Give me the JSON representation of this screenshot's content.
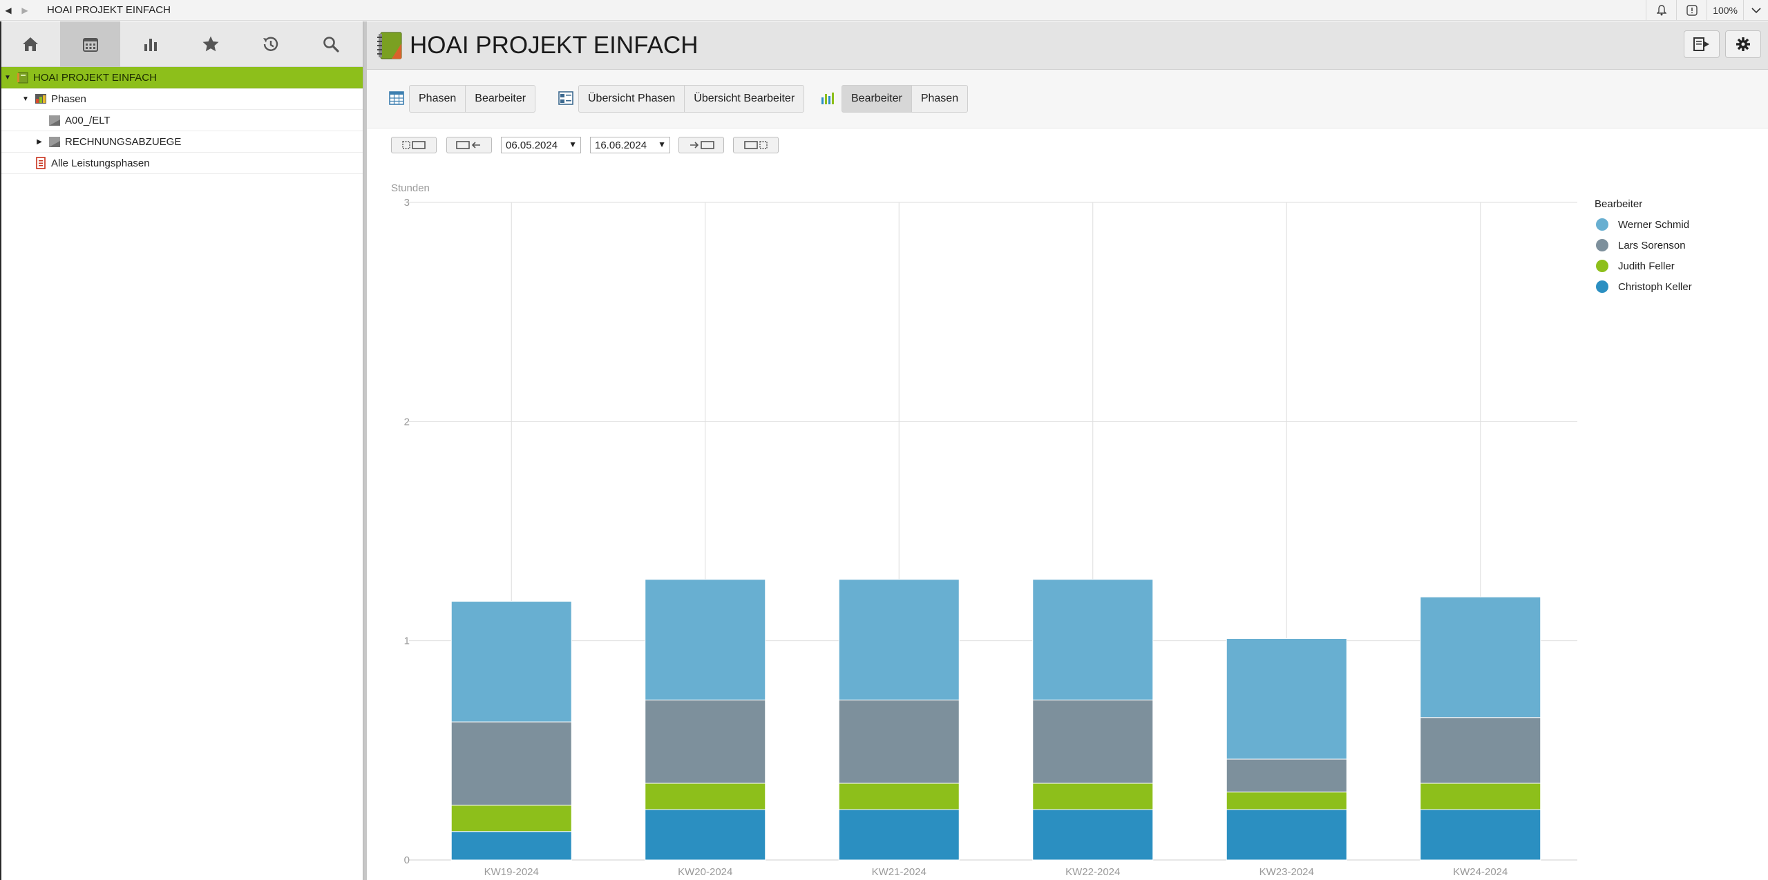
{
  "app": {
    "window_title": "HOAI PROJEKT EINFACH",
    "zoom": "100%"
  },
  "left": {
    "tree": [
      {
        "label": "HOAI PROJEKT EINFACH"
      },
      {
        "label": "Phasen"
      },
      {
        "label": "A00_/ELT"
      },
      {
        "label": "RECHNUNGSABZUEGE"
      },
      {
        "label": "Alle Leistungsphasen"
      }
    ]
  },
  "main": {
    "title": "HOAI PROJEKT EINFACH",
    "group1": [
      "Phasen",
      "Bearbeiter"
    ],
    "group2": [
      "Übersicht Phasen",
      "Übersicht Bearbeiter"
    ],
    "group3": [
      "Bearbeiter",
      "Phasen"
    ],
    "date_from": "06.05.2024",
    "date_to": "16.06.2024"
  },
  "colors": {
    "accent": "#8dbf1b",
    "werner": "#68afd1",
    "lars": "#7d909c",
    "judith": "#8dbf1b",
    "christoph": "#2b8fc1"
  },
  "chart_data": {
    "type": "bar",
    "stacked": true,
    "ylabel": "Stunden",
    "ylim": [
      0,
      3
    ],
    "yticks": [
      "0",
      "1",
      "2",
      "3"
    ],
    "categories": [
      "KW19-2024",
      "KW20-2024",
      "KW21-2024",
      "KW22-2024",
      "KW23-2024",
      "KW24-2024"
    ],
    "legend_title": "Bearbeiter",
    "legend_position": "right",
    "grid": true,
    "series": [
      {
        "name": "Christoph Keller",
        "color": "#2b8fc1",
        "values": [
          0.13,
          0.23,
          0.23,
          0.23,
          0.23,
          0.23
        ]
      },
      {
        "name": "Judith Feller",
        "color": "#8dbf1b",
        "values": [
          0.12,
          0.12,
          0.12,
          0.12,
          0.08,
          0.12
        ]
      },
      {
        "name": "Lars Sorenson",
        "color": "#7d909c",
        "values": [
          0.38,
          0.38,
          0.38,
          0.38,
          0.15,
          0.3
        ]
      },
      {
        "name": "Werner Schmid",
        "color": "#68afd1",
        "values": [
          0.55,
          0.55,
          0.55,
          0.55,
          0.55,
          0.55
        ]
      }
    ],
    "legend_order": [
      "Werner Schmid",
      "Lars Sorenson",
      "Judith Feller",
      "Christoph Keller"
    ]
  }
}
